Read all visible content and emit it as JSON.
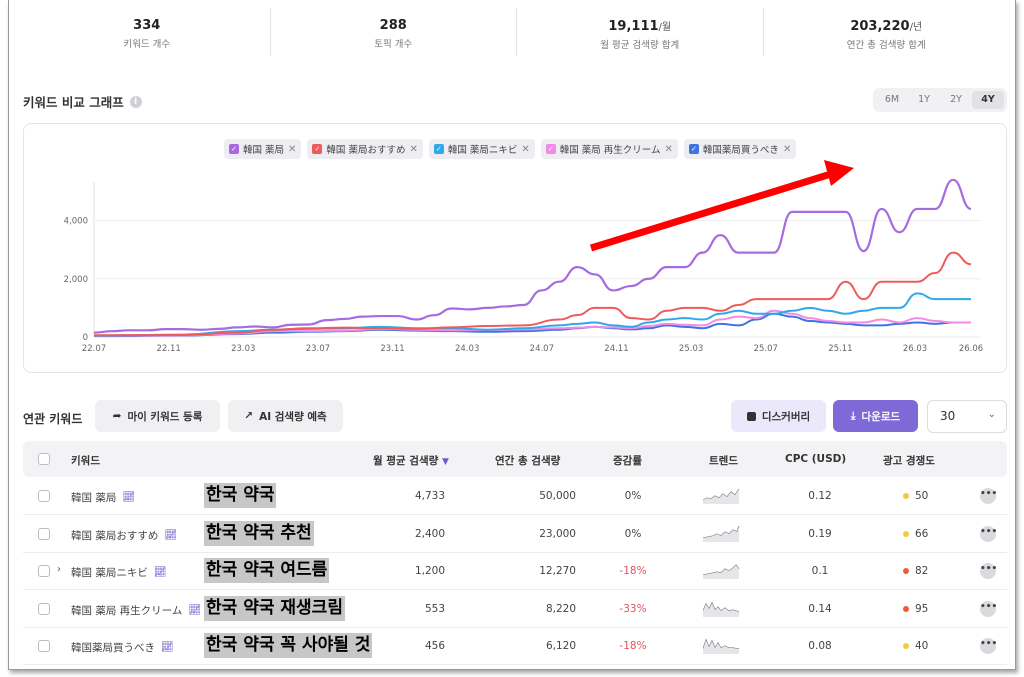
{
  "stats": [
    {
      "value": "334",
      "unit": "",
      "label": "키워드 개수"
    },
    {
      "value": "288",
      "unit": "",
      "label": "토픽 개수"
    },
    {
      "value": "19,111",
      "unit": "/월",
      "label": "월 평균 검색량 합계"
    },
    {
      "value": "203,220",
      "unit": "/년",
      "label": "연간 총 검색량 합계"
    }
  ],
  "graph": {
    "title": "키워드 비교 그래프",
    "info_icon": "info-icon",
    "periods": [
      "6M",
      "1Y",
      "2Y",
      "4Y"
    ],
    "active_period": "4Y"
  },
  "colors": {
    "purple": "#a66be0",
    "red": "#ee5b5b",
    "cyan": "#2fa9ea",
    "pink": "#f48ae8",
    "blue": "#3f74e0",
    "annotation_arrow": "#ff0000"
  },
  "chart_data": {
    "type": "line",
    "title": "",
    "xlabel": "",
    "ylabel": "",
    "ylim": [
      0,
      5600
    ],
    "yticks": [
      "0",
      "2,000",
      "4,000"
    ],
    "yticks_values": [
      0,
      2000,
      4000
    ],
    "x_ticks": [
      "22.07",
      "22.11",
      "23.03",
      "23.07",
      "23.11",
      "24.03",
      "24.07",
      "24.11",
      "25.03",
      "25.07",
      "25.11",
      "26.03",
      "26.06"
    ],
    "x_tick_months": [
      0,
      4,
      8,
      12,
      16,
      20,
      24,
      28,
      32,
      36,
      40,
      44,
      47
    ],
    "grid": "horizontal",
    "legend_position": "top-center",
    "series": [
      {
        "name": "韓国 薬局",
        "color": "#a66be0",
        "points": [
          [
            0,
            150
          ],
          [
            1,
            200
          ],
          [
            2,
            230
          ],
          [
            3,
            230
          ],
          [
            4,
            270
          ],
          [
            5,
            270
          ],
          [
            6,
            250
          ],
          [
            7,
            280
          ],
          [
            8,
            330
          ],
          [
            9,
            360
          ],
          [
            10,
            330
          ],
          [
            11,
            420
          ],
          [
            12,
            430
          ],
          [
            13,
            580
          ],
          [
            14,
            620
          ],
          [
            15,
            700
          ],
          [
            16,
            720
          ],
          [
            17,
            720
          ],
          [
            18,
            600
          ],
          [
            19,
            750
          ],
          [
            20,
            980
          ],
          [
            21,
            950
          ],
          [
            22,
            1000
          ],
          [
            23,
            1050
          ],
          [
            24,
            1100
          ],
          [
            25,
            1600
          ],
          [
            26,
            1900
          ],
          [
            27,
            2400
          ],
          [
            28,
            2150
          ],
          [
            29,
            1600
          ],
          [
            30,
            1750
          ],
          [
            31,
            2000
          ],
          [
            32,
            2400
          ],
          [
            33,
            2400
          ],
          [
            34,
            2900
          ],
          [
            35,
            3500
          ],
          [
            36,
            2900
          ],
          [
            37,
            2900
          ],
          [
            38,
            2900
          ],
          [
            39,
            4300
          ],
          [
            40,
            4300
          ],
          [
            41,
            4300
          ],
          [
            42,
            4300
          ],
          [
            43,
            2950
          ],
          [
            44,
            4400
          ],
          [
            45,
            3600
          ],
          [
            46,
            4400
          ],
          [
            47,
            4400
          ],
          [
            48,
            5400
          ],
          [
            49,
            4400
          ]
        ]
      },
      {
        "name": "韓国 薬局おすすめ",
        "color": "#ee5b5b",
        "points": [
          [
            0,
            60
          ],
          [
            5,
            70
          ],
          [
            8,
            150
          ],
          [
            10,
            250
          ],
          [
            12,
            300
          ],
          [
            14,
            320
          ],
          [
            16,
            300
          ],
          [
            18,
            280
          ],
          [
            20,
            330
          ],
          [
            22,
            380
          ],
          [
            24,
            400
          ],
          [
            26,
            600
          ],
          [
            27,
            750
          ],
          [
            28,
            1000
          ],
          [
            29,
            1000
          ],
          [
            30,
            650
          ],
          [
            31,
            600
          ],
          [
            32,
            900
          ],
          [
            33,
            1000
          ],
          [
            34,
            1000
          ],
          [
            35,
            900
          ],
          [
            36,
            1100
          ],
          [
            37,
            1300
          ],
          [
            38,
            1300
          ],
          [
            39,
            1300
          ],
          [
            40,
            1300
          ],
          [
            41,
            1300
          ],
          [
            42,
            1900
          ],
          [
            43,
            1300
          ],
          [
            44,
            1900
          ],
          [
            45,
            1900
          ],
          [
            46,
            1900
          ],
          [
            47,
            2200
          ],
          [
            48,
            2900
          ],
          [
            49,
            2500
          ]
        ]
      },
      {
        "name": "韓国 薬局ニキビ",
        "color": "#2fa9ea",
        "points": [
          [
            0,
            50
          ],
          [
            5,
            80
          ],
          [
            8,
            200
          ],
          [
            10,
            250
          ],
          [
            12,
            280
          ],
          [
            14,
            300
          ],
          [
            16,
            350
          ],
          [
            18,
            300
          ],
          [
            20,
            300
          ],
          [
            22,
            250
          ],
          [
            24,
            300
          ],
          [
            26,
            400
          ],
          [
            27,
            450
          ],
          [
            28,
            500
          ],
          [
            29,
            400
          ],
          [
            30,
            350
          ],
          [
            31,
            500
          ],
          [
            32,
            600
          ],
          [
            33,
            650
          ],
          [
            34,
            600
          ],
          [
            35,
            800
          ],
          [
            36,
            900
          ],
          [
            37,
            800
          ],
          [
            38,
            800
          ],
          [
            39,
            900
          ],
          [
            40,
            1000
          ],
          [
            41,
            900
          ],
          [
            42,
            800
          ],
          [
            43,
            900
          ],
          [
            44,
            1000
          ],
          [
            45,
            1000
          ],
          [
            46,
            1500
          ],
          [
            47,
            1300
          ],
          [
            48,
            1300
          ],
          [
            49,
            1300
          ]
        ]
      },
      {
        "name": "韓国 薬局 再生クリーム",
        "color": "#f48ae8",
        "points": [
          [
            0,
            40
          ],
          [
            5,
            60
          ],
          [
            8,
            120
          ],
          [
            10,
            200
          ],
          [
            12,
            200
          ],
          [
            14,
            220
          ],
          [
            16,
            280
          ],
          [
            18,
            250
          ],
          [
            20,
            230
          ],
          [
            22,
            240
          ],
          [
            24,
            260
          ],
          [
            26,
            300
          ],
          [
            27,
            320
          ],
          [
            28,
            350
          ],
          [
            29,
            330
          ],
          [
            30,
            300
          ],
          [
            31,
            380
          ],
          [
            32,
            450
          ],
          [
            33,
            420
          ],
          [
            34,
            400
          ],
          [
            35,
            600
          ],
          [
            36,
            700
          ],
          [
            37,
            650
          ],
          [
            38,
            900
          ],
          [
            39,
            800
          ],
          [
            40,
            650
          ],
          [
            41,
            550
          ],
          [
            42,
            500
          ],
          [
            43,
            500
          ],
          [
            44,
            600
          ],
          [
            45,
            500
          ],
          [
            46,
            650
          ],
          [
            47,
            550
          ],
          [
            48,
            500
          ],
          [
            49,
            500
          ]
        ]
      },
      {
        "name": "韓国薬局買うべき",
        "color": "#3f74e0",
        "points": [
          [
            0,
            30
          ],
          [
            5,
            50
          ],
          [
            8,
            100
          ],
          [
            10,
            150
          ],
          [
            12,
            180
          ],
          [
            14,
            200
          ],
          [
            16,
            250
          ],
          [
            18,
            220
          ],
          [
            20,
            200
          ],
          [
            22,
            180
          ],
          [
            24,
            200
          ],
          [
            26,
            250
          ],
          [
            27,
            300
          ],
          [
            28,
            350
          ],
          [
            29,
            300
          ],
          [
            30,
            260
          ],
          [
            31,
            300
          ],
          [
            32,
            400
          ],
          [
            33,
            350
          ],
          [
            34,
            300
          ],
          [
            35,
            450
          ],
          [
            36,
            400
          ],
          [
            37,
            600
          ],
          [
            38,
            800
          ],
          [
            39,
            700
          ],
          [
            40,
            550
          ],
          [
            41,
            500
          ],
          [
            42,
            450
          ],
          [
            43,
            400
          ],
          [
            44,
            400
          ],
          [
            45,
            450
          ],
          [
            46,
            500
          ],
          [
            47,
            450
          ],
          [
            48,
            500
          ],
          [
            49,
            500
          ]
        ]
      }
    ]
  },
  "related": {
    "title": "연관 키워드",
    "my_keyword_button": "마이 키워드 등록",
    "ai_predict_button": "AI 검색량 예측",
    "discovery_button": "디스커버리",
    "download_button": "다운로드",
    "page_size": "30"
  },
  "table": {
    "headers": {
      "keyword": "키워드",
      "monthly": "월 평균 검색량",
      "yearly": "연간 총 검색량",
      "change": "증감률",
      "trend": "트렌드",
      "cpc": "CPC (USD)",
      "competition": "광고 경쟁도"
    },
    "rows": [
      {
        "keyword": "韓国 薬局",
        "overlay": "한국 약국",
        "monthly": "4,733",
        "yearly": "50,000",
        "change": "0%",
        "cpc": "0.12",
        "competition": "50",
        "dot": "#f5c842"
      },
      {
        "keyword": "韓国 薬局おすすめ",
        "overlay": "한국 약국 추천",
        "monthly": "2,400",
        "yearly": "23,000",
        "change": "0%",
        "cpc": "0.19",
        "competition": "66",
        "dot": "#f5c842"
      },
      {
        "keyword": "韓国 薬局ニキビ",
        "overlay": "한국 약국 여드름",
        "monthly": "1,200",
        "yearly": "12,270",
        "change": "-18%",
        "cpc": "0.1",
        "competition": "82",
        "dot": "#ef5b3a"
      },
      {
        "keyword": "韓国 薬局 再生クリーム",
        "overlay": "한국 약국 재생크림",
        "monthly": "553",
        "yearly": "8,220",
        "change": "-33%",
        "cpc": "0.14",
        "competition": "95",
        "dot": "#ef5b3a"
      },
      {
        "keyword": "韓国薬局買うべき",
        "overlay": "한국 약국 꼭 사야될 것",
        "monthly": "456",
        "yearly": "6,120",
        "change": "-18%",
        "cpc": "0.08",
        "competition": "40",
        "dot": "#f5c842"
      }
    ]
  }
}
